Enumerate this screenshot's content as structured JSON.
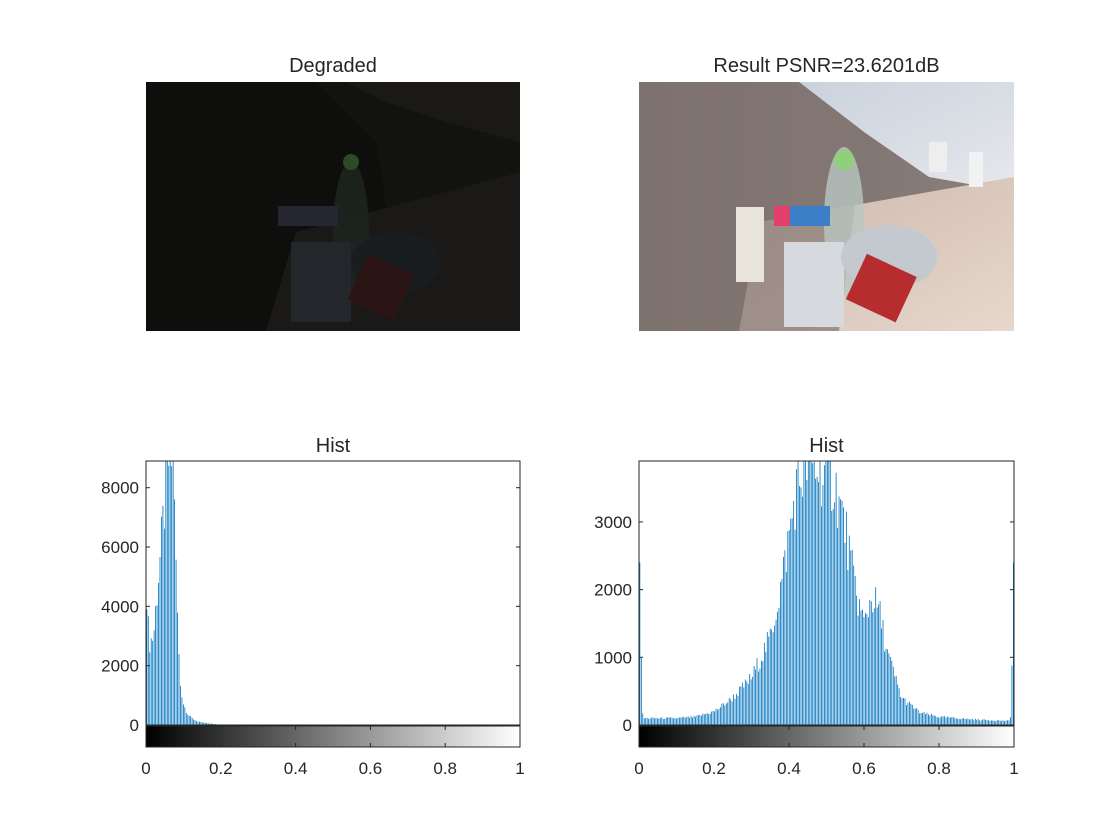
{
  "figure": {
    "panels": [
      {
        "title": "Degraded"
      },
      {
        "title": "Result PSNR=23.6201dB"
      }
    ]
  },
  "chart_data": [
    {
      "type": "bar",
      "title": "Hist",
      "xlabel": "",
      "ylabel": "",
      "xlim": [
        0,
        1
      ],
      "ylim": [
        0,
        8900
      ],
      "xticks": [
        0,
        0.2,
        0.4,
        0.6,
        0.8,
        1
      ],
      "yticks": [
        0,
        2000,
        4000,
        6000,
        8000
      ],
      "bar_color": "#0072BD",
      "colorbar": "grayscale 0-1",
      "bins": 256,
      "series": [
        {
          "x": [
            0.0,
            0.01,
            0.02,
            0.03,
            0.04,
            0.05,
            0.06,
            0.07,
            0.075,
            0.08,
            0.09,
            0.1,
            0.11,
            0.12,
            0.14,
            0.17,
            0.2,
            1.0
          ],
          "values": [
            3900,
            2800,
            3000,
            4600,
            6000,
            7500,
            8900,
            8900,
            8900,
            5200,
            1500,
            700,
            400,
            250,
            100,
            50,
            10,
            0
          ]
        }
      ]
    },
    {
      "type": "bar",
      "title": "Hist",
      "xlabel": "",
      "ylabel": "",
      "xlim": [
        0,
        1
      ],
      "ylim": [
        0,
        3900
      ],
      "xticks": [
        0,
        0.2,
        0.4,
        0.6,
        0.8,
        1
      ],
      "yticks": [
        0,
        1000,
        2000,
        3000
      ],
      "bar_color": "#0072BD",
      "colorbar": "grayscale 0-1",
      "bins": 256,
      "series": [
        {
          "x": [
            0.0,
            0.01,
            0.05,
            0.1,
            0.15,
            0.2,
            0.25,
            0.3,
            0.35,
            0.38,
            0.4,
            0.42,
            0.45,
            0.47,
            0.5,
            0.52,
            0.55,
            0.57,
            0.59,
            0.6,
            0.62,
            0.64,
            0.66,
            0.7,
            0.75,
            0.8,
            0.9,
            0.99,
            1.0
          ],
          "values": [
            2400,
            100,
            100,
            100,
            120,
            200,
            400,
            700,
            1300,
            2100,
            2800,
            3500,
            3900,
            3800,
            3700,
            3600,
            2900,
            2200,
            1700,
            1500,
            1900,
            1700,
            1100,
            400,
            180,
            120,
            80,
            60,
            2400
          ]
        }
      ]
    }
  ]
}
